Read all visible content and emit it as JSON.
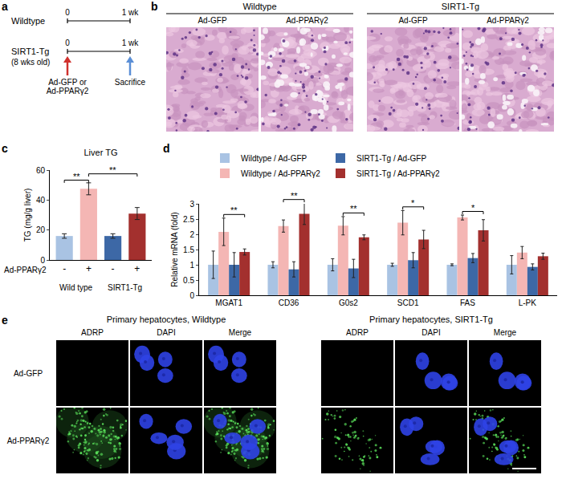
{
  "panel_letters": [
    "a",
    "b",
    "c",
    "d",
    "e"
  ],
  "panel_a": {
    "rows": [
      {
        "label": "Wildtype"
      },
      {
        "label": "SIRT1-Tg",
        "sublabel": "(8 wks old)"
      }
    ],
    "start": "0",
    "end": "1 wk",
    "injection": [
      "Ad-GFP or",
      "Ad-PPARγ2"
    ],
    "sacrifice": "Sacrifice"
  },
  "panel_b": {
    "groups": [
      "Wildtype",
      "SIRT1-Tg"
    ],
    "treatments": [
      "Ad-GFP",
      "Ad-PPARγ2"
    ]
  },
  "panel_e": {
    "groups": [
      "Primary hepatocytes, Wildtype",
      "Primary hepatocytes, SIRT1-Tg"
    ],
    "channels": [
      "ADRP",
      "DAPI",
      "Merge"
    ],
    "rows": [
      "Ad-GFP",
      "Ad-PPARγ2"
    ]
  },
  "chart_data": [
    {
      "type": "bar",
      "title": "Liver TG",
      "y_label": "TG (mg/g liver)",
      "x_label": "Ad-PPARγ2",
      "categories": [
        "-",
        "+",
        "-",
        "+"
      ],
      "group_labels": [
        {
          "label": "Wild type",
          "members": [
            0,
            1
          ]
        },
        {
          "label": "SIRT1-Tg",
          "members": [
            2,
            3
          ]
        }
      ],
      "values": [
        16,
        47.5,
        16,
        31
      ],
      "errors": [
        1.5,
        4,
        1.5,
        4
      ],
      "colors": [
        "#a9c3e3",
        "#f4b6b4",
        "#3d68a6",
        "#a3302e"
      ],
      "ylim": [
        0,
        60
      ],
      "yticks": [
        0,
        20,
        40,
        60
      ],
      "grid": false,
      "significance": [
        {
          "bars": [
            0,
            1
          ],
          "label": "**"
        },
        {
          "bars": [
            1,
            3
          ],
          "label": "**"
        }
      ]
    },
    {
      "type": "bar",
      "y_label": "Relative mRNA (fold)",
      "categories": [
        "MGAT1",
        "CD36",
        "G0s2",
        "SCD1",
        "FAS",
        "L-PK"
      ],
      "series": [
        {
          "name": "Wildtype / Ad-GFP",
          "color": "#a9c3e3",
          "values": [
            1,
            1,
            1,
            1,
            1,
            1
          ],
          "errors": [
            0.45,
            0.1,
            0.2,
            0.05,
            0.03,
            0.3
          ]
        },
        {
          "name": "Wildtype / Ad-PPARγ2",
          "color": "#f4b6b4",
          "values": [
            2.08,
            2.27,
            2.28,
            2.38,
            2.55,
            1.4
          ],
          "errors": [
            0.45,
            0.2,
            0.3,
            0.4,
            0.08,
            0.2
          ]
        },
        {
          "name": "SIRT1-Tg / Ad-GFP",
          "color": "#3d68a6",
          "values": [
            1,
            0.85,
            0.88,
            1.15,
            1.22,
            0.93
          ],
          "errors": [
            0.4,
            0.25,
            0.3,
            0.25,
            0.15,
            0.1
          ]
        },
        {
          "name": "SIRT1-Tg / Ad-PPARγ2",
          "color": "#a3302e",
          "values": [
            1.42,
            2.67,
            1.9,
            1.83,
            2.13,
            1.28
          ],
          "errors": [
            0.1,
            0.35,
            0.08,
            0.3,
            0.35,
            0.1
          ]
        }
      ],
      "ylim": [
        0,
        3
      ],
      "yticks": [
        0,
        0.5,
        1,
        1.5,
        2,
        2.5,
        3
      ],
      "grid": false,
      "legend": "top",
      "significance": [
        {
          "category": 0,
          "bars": [
            1,
            3
          ],
          "label": "**"
        },
        {
          "category": 1,
          "bars": [
            1,
            3
          ],
          "label": "**"
        },
        {
          "category": 2,
          "bars": [
            1,
            3
          ],
          "label": "**"
        },
        {
          "category": 3,
          "bars": [
            1,
            3
          ],
          "label": "*"
        },
        {
          "category": 4,
          "bars": [
            1,
            3
          ],
          "label": "*"
        }
      ]
    }
  ]
}
